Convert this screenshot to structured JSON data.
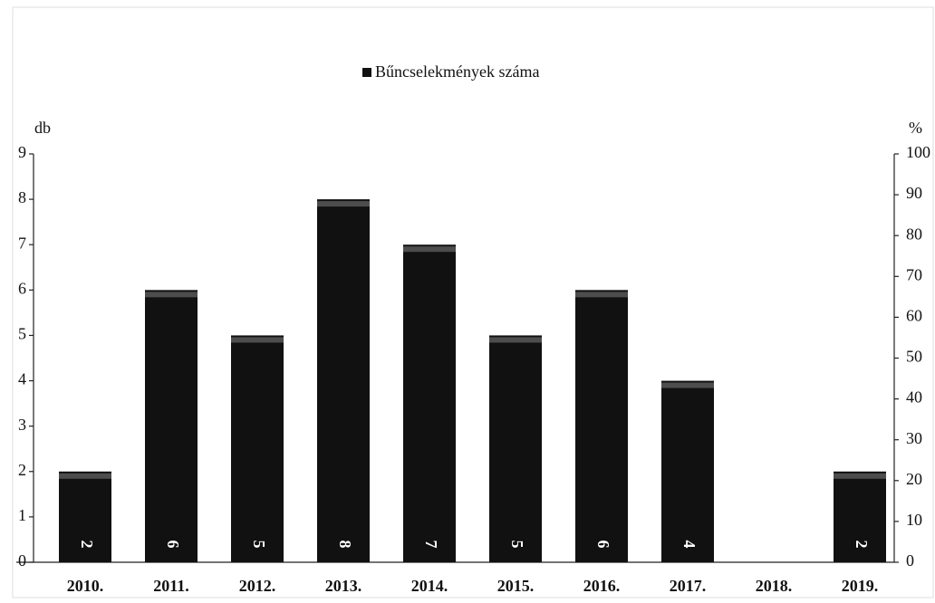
{
  "chart_data": {
    "type": "bar",
    "y_label": "db",
    "y2_label": "%",
    "categories": [
      "2010.",
      "2011.",
      "2012.",
      "2013.",
      "2014.",
      "2015.",
      "2016.",
      "2017.",
      "2018.",
      "2019."
    ],
    "series": [
      {
        "name": "Bűncselekmények száma",
        "color": "#111111",
        "values": [
          2,
          6,
          5,
          8,
          7,
          5,
          6,
          4,
          null,
          2
        ]
      }
    ],
    "ylim": [
      0,
      9
    ],
    "yticks": [
      0,
      1,
      2,
      3,
      4,
      5,
      6,
      7,
      8,
      9
    ],
    "y2lim": [
      0,
      100
    ],
    "y2ticks": [
      0,
      10,
      20,
      30,
      40,
      50,
      60,
      70,
      80,
      90,
      100
    ],
    "legend": "top"
  }
}
